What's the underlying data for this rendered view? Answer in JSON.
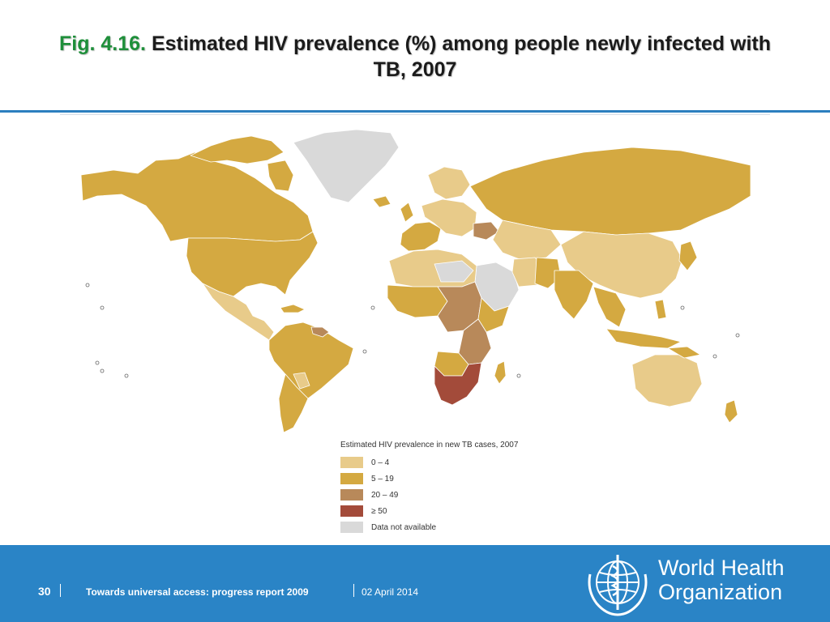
{
  "title": {
    "prefix": "Fig. 4.16.",
    "line1": "Estimated HIV prevalence (%) among people newly infected with",
    "line2": "TB, 2007"
  },
  "legend": {
    "title": "Estimated HIV prevalence in new TB cases, 2007",
    "items": [
      {
        "label": "0 – 4",
        "color": "#e8cb8a"
      },
      {
        "label": "5 – 19",
        "color": "#d4a941"
      },
      {
        "label": "20 – 49",
        "color": "#b8895a"
      },
      {
        "label": "≥ 50",
        "color": "#a34b3a"
      },
      {
        "label": "Data not available",
        "color": "#d9d9d9"
      }
    ]
  },
  "map_colors": {
    "c0_4": "#e8cb8a",
    "c5_19": "#d4a941",
    "c20_49": "#b8895a",
    "c50": "#a34b3a",
    "na": "#d9d9d9",
    "border": "#ffffff"
  },
  "footer": {
    "page_number": "30",
    "report": "Towards universal access: progress report 2009",
    "date": "02 April 2014",
    "org_line1": "World Health",
    "org_line2": "Organization",
    "bg_color": "#2a84c6"
  }
}
